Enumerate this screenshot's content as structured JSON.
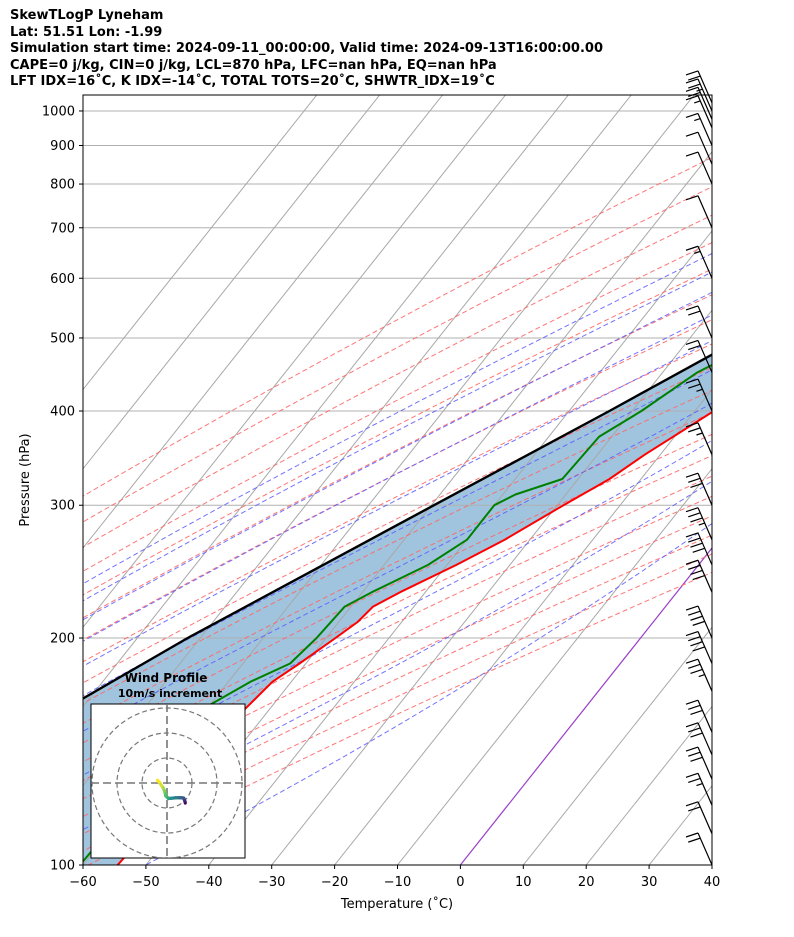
{
  "header": {
    "title": "SkewTLogP Lyneham",
    "location": "Lat: 51.51   Lon: -1.99",
    "times": "Simulation start time: 2024-09-11_00:00:00, Valid time: 2024-09-13T16:00:00.00",
    "indices1": "CAPE=0 j/kg, CIN=0 j/kg, LCL=870 hPa, LFC=nan hPa, EQ=nan hPa",
    "indices2": "LFT IDX=16˚C, K IDX=-14˚C, TOTAL TOTS=20˚C, SHWTR_IDX=19˚C"
  },
  "chart_data": {
    "type": "line",
    "skew_t": true,
    "xlabel": "Temperature (˚C)",
    "ylabel": "Pressure (hPa)",
    "xlim": [
      -60,
      40
    ],
    "ylim": [
      1050,
      100
    ],
    "y_scale": "log",
    "x_ticks": [
      -60,
      -50,
      -40,
      -30,
      -20,
      -10,
      0,
      10,
      20,
      30,
      40
    ],
    "y_ticks": [
      100,
      200,
      300,
      400,
      500,
      600,
      700,
      800,
      900,
      1000
    ],
    "grid": true,
    "colors": {
      "temperature": "#ff0000",
      "dewpoint": "#008000",
      "parcel": "#000000",
      "shade": "#a0c4de",
      "dry_adiabats": "#ff6666",
      "moist_adiabats": "#5a5aff",
      "mixing_ratio": "#5a5aff",
      "isotherms": "#a8a8a8",
      "zero_isotherm": "#9b3fc9"
    },
    "temperature": {
      "p": [
        1000,
        950,
        900,
        850,
        800,
        750,
        700,
        650,
        600,
        550,
        500,
        450,
        400,
        350,
        325,
        300,
        270,
        250,
        230,
        220,
        210,
        200,
        185,
        175,
        160,
        150,
        140,
        130,
        120,
        110,
        100
      ],
      "t": [
        14.5,
        11,
        8,
        7.5,
        6.5,
        4.5,
        3,
        0.5,
        -2,
        -4.5,
        -8,
        -12,
        -17,
        -22.5,
        -25,
        -29,
        -34,
        -38.5,
        -44,
        -46.5,
        -47,
        -48.5,
        -51,
        -53,
        -54,
        -54,
        -54.5,
        -55.5,
        -55.5,
        -54,
        -54.5
      ]
    },
    "dewpoint": {
      "p": [
        1010,
        970,
        940,
        910,
        870,
        820,
        790,
        770,
        730,
        700,
        650,
        620,
        600,
        550,
        500,
        450,
        400,
        370,
        325,
        310,
        300,
        270,
        250,
        230,
        220,
        200,
        185,
        175,
        160,
        150,
        130,
        120,
        100
      ],
      "t": [
        3,
        1.5,
        -2,
        -7.5,
        -15.5,
        -24.5,
        -33.5,
        -36,
        -29,
        -21,
        -8.5,
        -5.5,
        -7,
        -12,
        -18,
        -24.5,
        -28.5,
        -32,
        -32.5,
        -38,
        -40,
        -40,
        -43,
        -48.5,
        -51,
        -51.5,
        -52.5,
        -56.5,
        -61,
        -64.5,
        -61,
        -60,
        -60.5
      ]
    },
    "parcel": {
      "p": [
        1020,
        870,
        850,
        800,
        700,
        600,
        500,
        400,
        300,
        200,
        150,
        100
      ],
      "t": [
        14,
        4.1,
        3,
        0.3,
        -5.6,
        -12.6,
        -21.7,
        -33.6,
        -49.6,
        -72,
        -86,
        -103
      ]
    },
    "dewpoint_to_lcl": {
      "p": [
        1020,
        870
      ],
      "t": [
        4,
        4.1
      ]
    },
    "wind_barbs": [
      {
        "p": 1025,
        "wspd_kt": 20
      },
      {
        "p": 1000,
        "wspd_kt": 25
      },
      {
        "p": 975,
        "wspd_kt": 20
      },
      {
        "p": 950,
        "wspd_kt": 15
      },
      {
        "p": 900,
        "wspd_kt": 15
      },
      {
        "p": 850,
        "wspd_kt": 10
      },
      {
        "p": 800,
        "wspd_kt": 10
      },
      {
        "p": 700,
        "wspd_kt": 10
      },
      {
        "p": 600,
        "wspd_kt": 15
      },
      {
        "p": 500,
        "wspd_kt": 20
      },
      {
        "p": 450,
        "wspd_kt": 20
      },
      {
        "p": 400,
        "wspd_kt": 25
      },
      {
        "p": 350,
        "wspd_kt": 25
      },
      {
        "p": 300,
        "wspd_kt": 30
      },
      {
        "p": 270,
        "wspd_kt": 35
      },
      {
        "p": 250,
        "wspd_kt": 40
      },
      {
        "p": 230,
        "wspd_kt": 40
      },
      {
        "p": 200,
        "wspd_kt": 40
      },
      {
        "p": 185,
        "wspd_kt": 40
      },
      {
        "p": 170,
        "wspd_kt": 35
      },
      {
        "p": 150,
        "wspd_kt": 30
      },
      {
        "p": 140,
        "wspd_kt": 30
      },
      {
        "p": 130,
        "wspd_kt": 30
      },
      {
        "p": 120,
        "wspd_kt": 25
      },
      {
        "p": 110,
        "wspd_kt": 20
      },
      {
        "p": 100,
        "wspd_kt": 20
      }
    ],
    "hodograph": {
      "title": "Wind Profile",
      "subtitle": "10m/s increment",
      "u": [
        7.3,
        7.2,
        7.0,
        6.9,
        6.6,
        5.6,
        4.8,
        3.5,
        1.8,
        0.6,
        0.0,
        -0.5,
        -0.7,
        -1.0,
        -1.5,
        -2.2,
        -3.2,
        -3.8
      ],
      "v": [
        -8.0,
        -7.4,
        -6.9,
        -6.5,
        -6.0,
        -5.9,
        -5.9,
        -5.9,
        -6.1,
        -6.2,
        -5.6,
        -5.1,
        -4.1,
        -3.2,
        -2.0,
        -1.0,
        0.5,
        1.1
      ],
      "colormap": "viridis_r"
    }
  }
}
